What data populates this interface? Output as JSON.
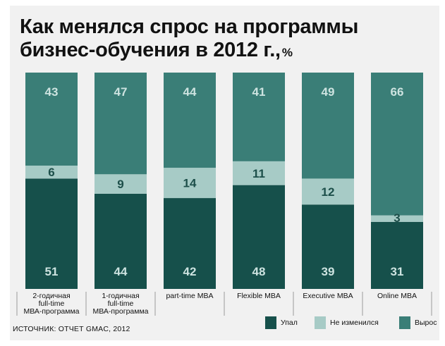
{
  "title_line1": "Как менялся спрос на программы",
  "title_line2": "бизнес-обучения в 2012 г.,",
  "unit": "%",
  "source": "ИСТОЧНИК: ОТЧЕТ GMAC, 2012",
  "colors": {
    "fell": "#16504b",
    "unchanged": "#a7cbc6",
    "grew": "#3a7e77",
    "background": "#f1f1f1",
    "text_light": "#cde3e0",
    "text_dark": "#1d4f4a"
  },
  "chart_data": {
    "type": "bar",
    "stacked": true,
    "title": "Как менялся спрос на программы бизнес-обучения в 2012 г., %",
    "categories": [
      "2-годичная full-time МВА-программа",
      "1-годичная full-time МВА-программа",
      "part-time MBA",
      "Flexible MBA",
      "Executive MBA",
      "Online MBA"
    ],
    "category_lines": [
      [
        "2-годичная",
        "full-time",
        "МВА-программа"
      ],
      [
        "1-годичная",
        "full-time",
        "МВА-программа"
      ],
      [
        "part-time MBA"
      ],
      [
        "Flexible MBA"
      ],
      [
        "Executive MBA"
      ],
      [
        "Online MBA"
      ]
    ],
    "series": [
      {
        "name": "Упал",
        "values": [
          51,
          44,
          42,
          48,
          39,
          31
        ]
      },
      {
        "name": "Не изменился",
        "values": [
          6,
          9,
          14,
          11,
          12,
          3
        ]
      },
      {
        "name": "Вырос",
        "values": [
          43,
          47,
          44,
          41,
          49,
          66
        ]
      }
    ],
    "ylim": [
      0,
      100
    ],
    "legend_position": "bottom-right"
  }
}
